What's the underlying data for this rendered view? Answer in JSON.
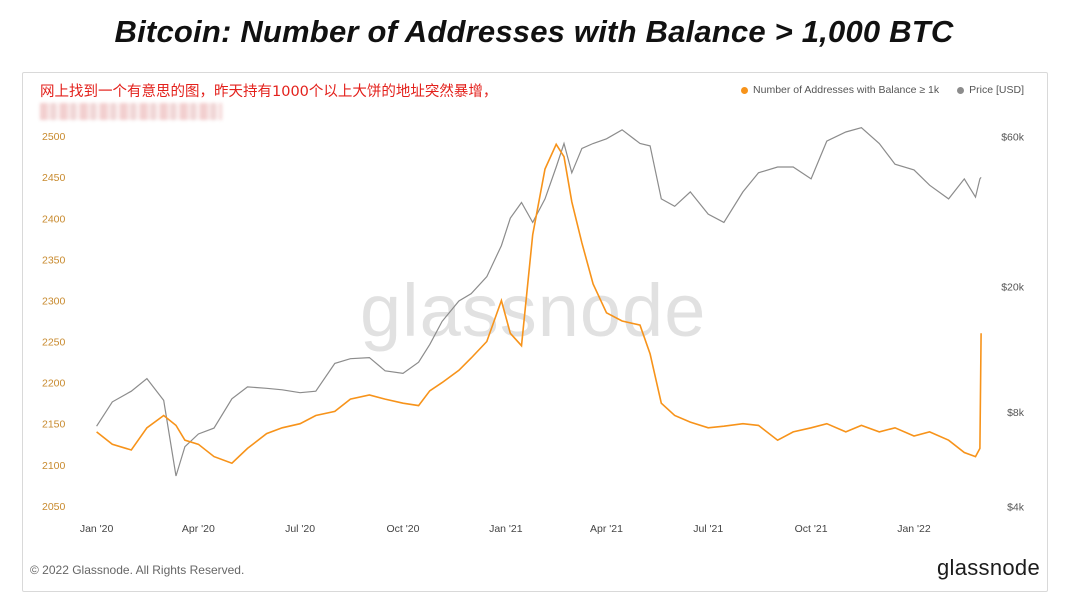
{
  "headline": "Bitcoin: Number of Addresses with Balance > 1,000 BTC",
  "annotation": "网上找到一个有意思的图，昨天持有1000个以上大饼的地址突然暴增，",
  "watermark": "glassnode",
  "footer": {
    "copyright": "© 2022 Glassnode. All Rights Reserved.",
    "logo": "glassnode"
  },
  "colors": {
    "addresses": "#f7931a",
    "price": "#8c8c8c",
    "left_tick": "#c88a2e",
    "right_tick": "#555555",
    "x_tick": "#444444"
  },
  "chart_data": {
    "type": "line",
    "series": [
      {
        "name": "Number of Addresses with Balance ≥ 1k",
        "axis": "left",
        "x": [
          "2020-01-01",
          "2020-01-15",
          "2020-02-01",
          "2020-02-15",
          "2020-03-01",
          "2020-03-12",
          "2020-03-20",
          "2020-04-01",
          "2020-04-15",
          "2020-05-01",
          "2020-05-15",
          "2020-06-01",
          "2020-06-15",
          "2020-07-01",
          "2020-07-15",
          "2020-08-01",
          "2020-08-15",
          "2020-09-01",
          "2020-09-15",
          "2020-10-01",
          "2020-10-15",
          "2020-10-25",
          "2020-11-05",
          "2020-11-20",
          "2020-12-01",
          "2020-12-15",
          "2020-12-28",
          "2021-01-05",
          "2021-01-15",
          "2021-01-25",
          "2021-02-05",
          "2021-02-15",
          "2021-02-22",
          "2021-03-01",
          "2021-03-10",
          "2021-03-20",
          "2021-04-01",
          "2021-04-15",
          "2021-05-01",
          "2021-05-10",
          "2021-05-20",
          "2021-06-01",
          "2021-06-15",
          "2021-07-01",
          "2021-07-15",
          "2021-08-01",
          "2021-08-15",
          "2021-09-01",
          "2021-09-15",
          "2021-10-01",
          "2021-10-15",
          "2021-11-01",
          "2021-11-15",
          "2021-12-01",
          "2021-12-15",
          "2022-01-01",
          "2022-01-15",
          "2022-02-01",
          "2022-02-15",
          "2022-02-25",
          "2022-03-01",
          "2022-03-02"
        ],
        "values": [
          2140,
          2125,
          2118,
          2145,
          2160,
          2148,
          2130,
          2125,
          2110,
          2102,
          2120,
          2138,
          2145,
          2150,
          2160,
          2165,
          2180,
          2185,
          2180,
          2175,
          2172,
          2190,
          2200,
          2215,
          2230,
          2250,
          2300,
          2260,
          2245,
          2380,
          2460,
          2490,
          2475,
          2420,
          2370,
          2320,
          2285,
          2275,
          2270,
          2235,
          2175,
          2160,
          2152,
          2145,
          2147,
          2150,
          2148,
          2130,
          2140,
          2145,
          2150,
          2140,
          2148,
          2140,
          2145,
          2135,
          2140,
          2130,
          2115,
          2110,
          2120,
          2260
        ]
      },
      {
        "name": "Price [USD]",
        "axis": "right",
        "x": [
          "2020-01-01",
          "2020-01-15",
          "2020-02-01",
          "2020-02-15",
          "2020-03-01",
          "2020-03-12",
          "2020-03-20",
          "2020-04-01",
          "2020-04-15",
          "2020-05-01",
          "2020-05-15",
          "2020-06-01",
          "2020-06-15",
          "2020-07-01",
          "2020-07-15",
          "2020-08-01",
          "2020-08-15",
          "2020-09-01",
          "2020-09-15",
          "2020-10-01",
          "2020-10-15",
          "2020-10-25",
          "2020-11-05",
          "2020-11-20",
          "2020-12-01",
          "2020-12-15",
          "2020-12-28",
          "2021-01-05",
          "2021-01-15",
          "2021-01-25",
          "2021-02-05",
          "2021-02-15",
          "2021-02-22",
          "2021-03-01",
          "2021-03-10",
          "2021-03-20",
          "2021-04-01",
          "2021-04-15",
          "2021-05-01",
          "2021-05-10",
          "2021-05-20",
          "2021-06-01",
          "2021-06-15",
          "2021-07-01",
          "2021-07-15",
          "2021-08-01",
          "2021-08-15",
          "2021-09-01",
          "2021-09-15",
          "2021-10-01",
          "2021-10-15",
          "2021-11-01",
          "2021-11-15",
          "2021-12-01",
          "2021-12-15",
          "2022-01-01",
          "2022-01-15",
          "2022-02-01",
          "2022-02-15",
          "2022-02-25",
          "2022-03-01",
          "2022-03-02"
        ],
        "values": [
          7200,
          8600,
          9300,
          10200,
          8700,
          5000,
          6200,
          6800,
          7100,
          8800,
          9600,
          9500,
          9400,
          9200,
          9300,
          11400,
          11800,
          11900,
          10800,
          10600,
          11500,
          13100,
          15500,
          18000,
          19000,
          21500,
          27000,
          33000,
          37000,
          32000,
          38000,
          48000,
          57000,
          46000,
          55000,
          57000,
          59000,
          63000,
          57000,
          56000,
          38000,
          36000,
          40000,
          34000,
          32000,
          40000,
          46000,
          48000,
          48000,
          44000,
          58000,
          62000,
          64000,
          57000,
          49000,
          47000,
          42000,
          38000,
          44000,
          38500,
          44000,
          44500
        ]
      }
    ],
    "left_axis": {
      "ticks": [
        2050,
        2100,
        2150,
        2200,
        2250,
        2300,
        2350,
        2400,
        2450,
        2500
      ],
      "ylim": [
        2045,
        2505
      ]
    },
    "right_axis": {
      "scale": "log",
      "ticks": [
        4000,
        8000,
        20000,
        60000
      ],
      "tick_labels": [
        "$4k",
        "$8k",
        "$20k",
        "$60k"
      ],
      "ylim": [
        3900,
        62000
      ]
    },
    "x_axis": {
      "ticks": [
        "2020-01-01",
        "2020-04-01",
        "2020-07-01",
        "2020-10-01",
        "2021-01-01",
        "2021-04-01",
        "2021-07-01",
        "2021-10-01",
        "2022-01-01"
      ],
      "tick_labels": [
        "Jan '20",
        "Apr '20",
        "Jul '20",
        "Oct '20",
        "Jan '21",
        "Apr '21",
        "Jul '21",
        "Oct '21",
        "Jan '22"
      ],
      "range": [
        "2019-12-10",
        "2022-03-10"
      ]
    },
    "legend": "top-right",
    "grid": false
  }
}
